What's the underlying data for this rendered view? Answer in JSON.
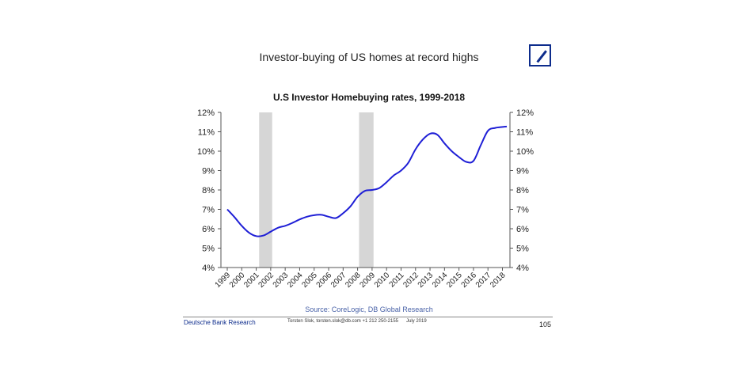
{
  "page": {
    "headline": "Investor-buying of US homes at record highs",
    "source": "Source: CoreLogic, DB Global Research",
    "footer_left": "Deutsche Bank Research",
    "footer_contact": "Torsten Slok, torsten.slok@db.com +1 212 250-2155",
    "footer_date": "July 2019",
    "page_number": "105",
    "brand_color": "#0d2c8c"
  },
  "chart_data": {
    "type": "line",
    "title": "U.S Investor Homebuying rates, 1999-2018",
    "xlabel": "",
    "ylabel": "",
    "x_tick_labels": [
      "1999",
      "2000",
      "2001",
      "2002",
      "2003",
      "2004",
      "2005",
      "2006",
      "2007",
      "2008",
      "2009",
      "2010",
      "2011",
      "2012",
      "2013",
      "2014",
      "2015",
      "2016",
      "2017",
      "2018"
    ],
    "y_tick_labels_left": [
      "4%",
      "5%",
      "6%",
      "7%",
      "8%",
      "9%",
      "10%",
      "11%",
      "12%"
    ],
    "y_tick_labels_right": [
      "4%",
      "5%",
      "6%",
      "7%",
      "8%",
      "9%",
      "10%",
      "11%",
      "12%"
    ],
    "ylim": [
      4,
      12
    ],
    "xlim": [
      1999,
      2018.3
    ],
    "grid": false,
    "recession_shading": [
      [
        2001.2,
        2002.1
      ],
      [
        2008.1,
        2009.1
      ]
    ],
    "shading_color": "#d6d6d6",
    "series": [
      {
        "color": "#1f1fd6",
        "x": [
          1999.0,
          1999.5,
          2000.0,
          2000.5,
          2001.0,
          2001.5,
          2002.0,
          2002.5,
          2003.0,
          2003.5,
          2004.0,
          2004.5,
          2005.0,
          2005.5,
          2006.0,
          2006.5,
          2007.0,
          2007.5,
          2008.0,
          2008.5,
          2009.0,
          2009.5,
          2010.0,
          2010.5,
          2011.0,
          2011.5,
          2012.0,
          2012.5,
          2013.0,
          2013.5,
          2014.0,
          2014.5,
          2015.0,
          2015.5,
          2016.0,
          2016.5,
          2017.0,
          2017.5,
          2018.0,
          2018.3
        ],
        "y": [
          7.0,
          6.6,
          6.15,
          5.8,
          5.62,
          5.65,
          5.85,
          6.05,
          6.15,
          6.3,
          6.48,
          6.62,
          6.7,
          6.72,
          6.62,
          6.55,
          6.8,
          7.15,
          7.65,
          7.95,
          8.0,
          8.1,
          8.4,
          8.75,
          9.0,
          9.4,
          10.1,
          10.6,
          10.9,
          10.85,
          10.4,
          10.0,
          9.7,
          9.45,
          9.5,
          10.3,
          11.05,
          11.2,
          11.25,
          11.27
        ]
      }
    ]
  }
}
